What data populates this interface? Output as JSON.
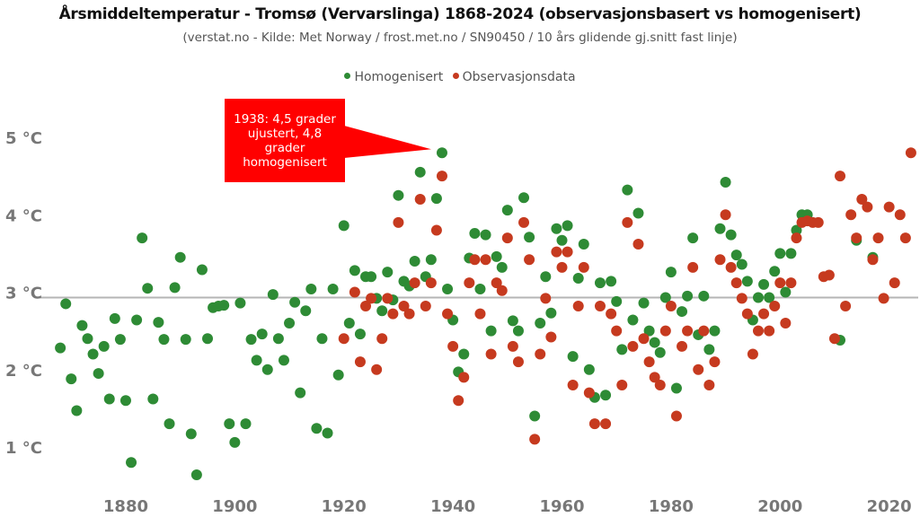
{
  "chart_data": {
    "type": "scatter",
    "title": "Årsmiddeltemperatur - Tromsø (Vervarslinga) 1868-2024 (observasjonsbasert vs homogenisert)",
    "subtitle": "(verstat.no - Kilde: Met Norway / frost.met.no / SN90450 / 10 års glidende gj.snitt fast linje)",
    "xlim": [
      1866,
      2025
    ],
    "ylim": [
      0.5,
      5.5
    ],
    "x_ticks": [
      "1880",
      "1900",
      "1920",
      "1940",
      "1960",
      "1980",
      "2000",
      "2020"
    ],
    "y_ticks": [
      "1 °C",
      "2 °C",
      "3 °C",
      "4 °C",
      "5 °C"
    ],
    "reference_line": 2.93,
    "legend_position": "top-center",
    "annotation": {
      "text": "1938: 4,5 grader ujustert, 4,8 grader homogenisert",
      "x": 1938,
      "y": 4.8
    },
    "series": [
      {
        "name": "Homogenisert",
        "color": "#2e8b35",
        "points": [
          [
            1868,
            2.28
          ],
          [
            1869,
            2.85
          ],
          [
            1870,
            1.88
          ],
          [
            1871,
            1.47
          ],
          [
            1872,
            2.57
          ],
          [
            1873,
            2.4
          ],
          [
            1874,
            2.2
          ],
          [
            1875,
            1.95
          ],
          [
            1876,
            2.3
          ],
          [
            1877,
            1.62
          ],
          [
            1878,
            2.66
          ],
          [
            1879,
            2.39
          ],
          [
            1880,
            1.6
          ],
          [
            1881,
            0.8
          ],
          [
            1882,
            2.64
          ],
          [
            1883,
            3.7
          ],
          [
            1884,
            3.05
          ],
          [
            1885,
            1.62
          ],
          [
            1886,
            2.61
          ],
          [
            1887,
            2.39
          ],
          [
            1888,
            1.3
          ],
          [
            1889,
            3.06
          ],
          [
            1890,
            3.45
          ],
          [
            1891,
            2.39
          ],
          [
            1892,
            1.17
          ],
          [
            1893,
            0.64
          ],
          [
            1894,
            3.29
          ],
          [
            1895,
            2.4
          ],
          [
            1896,
            2.8
          ],
          [
            1897,
            2.82
          ],
          [
            1898,
            2.83
          ],
          [
            1899,
            1.3
          ],
          [
            1900,
            1.06
          ],
          [
            1901,
            2.86
          ],
          [
            1902,
            1.3
          ],
          [
            1903,
            2.39
          ],
          [
            1904,
            2.12
          ],
          [
            1905,
            2.46
          ],
          [
            1906,
            2.0
          ],
          [
            1907,
            2.97
          ],
          [
            1908,
            2.4
          ],
          [
            1909,
            2.12
          ],
          [
            1910,
            2.6
          ],
          [
            1911,
            2.87
          ],
          [
            1912,
            1.7
          ],
          [
            1913,
            2.76
          ],
          [
            1914,
            3.04
          ],
          [
            1915,
            1.24
          ],
          [
            1916,
            2.4
          ],
          [
            1917,
            1.18
          ],
          [
            1918,
            3.04
          ],
          [
            1919,
            1.93
          ],
          [
            1920,
            3.86
          ],
          [
            1921,
            2.6
          ],
          [
            1922,
            3.28
          ],
          [
            1923,
            2.46
          ],
          [
            1924,
            3.2
          ],
          [
            1925,
            3.2
          ],
          [
            1926,
            2.92
          ],
          [
            1927,
            2.76
          ],
          [
            1928,
            3.26
          ],
          [
            1929,
            2.9
          ],
          [
            1930,
            4.25
          ],
          [
            1931,
            3.14
          ],
          [
            1932,
            3.08
          ],
          [
            1933,
            3.4
          ],
          [
            1934,
            4.55
          ],
          [
            1935,
            3.2
          ],
          [
            1936,
            3.42
          ],
          [
            1937,
            4.21
          ],
          [
            1938,
            4.8
          ],
          [
            1939,
            3.04
          ],
          [
            1940,
            2.64
          ],
          [
            1941,
            1.97
          ],
          [
            1942,
            2.2
          ],
          [
            1943,
            3.44
          ],
          [
            1944,
            3.76
          ],
          [
            1945,
            3.04
          ],
          [
            1946,
            3.74
          ],
          [
            1947,
            2.5
          ],
          [
            1948,
            3.46
          ],
          [
            1949,
            3.32
          ],
          [
            1950,
            4.06
          ],
          [
            1951,
            2.63
          ],
          [
            1952,
            2.5
          ],
          [
            1953,
            4.22
          ],
          [
            1954,
            3.71
          ],
          [
            1955,
            1.4
          ],
          [
            1956,
            2.6
          ],
          [
            1957,
            3.2
          ],
          [
            1958,
            2.73
          ],
          [
            1959,
            3.82
          ],
          [
            1960,
            3.67
          ],
          [
            1961,
            3.86
          ],
          [
            1962,
            2.17
          ],
          [
            1963,
            3.18
          ],
          [
            1964,
            3.62
          ],
          [
            1965,
            2.0
          ],
          [
            1966,
            1.64
          ],
          [
            1967,
            3.12
          ],
          [
            1968,
            1.67
          ],
          [
            1969,
            3.14
          ],
          [
            1970,
            2.88
          ],
          [
            1971,
            2.26
          ],
          [
            1972,
            4.32
          ],
          [
            1973,
            2.64
          ],
          [
            1974,
            4.02
          ],
          [
            1975,
            2.86
          ],
          [
            1976,
            2.5
          ],
          [
            1977,
            2.35
          ],
          [
            1978,
            2.22
          ],
          [
            1979,
            2.93
          ],
          [
            1980,
            3.26
          ],
          [
            1981,
            1.76
          ],
          [
            1982,
            2.75
          ],
          [
            1983,
            2.95
          ],
          [
            1984,
            3.7
          ],
          [
            1985,
            2.45
          ],
          [
            1986,
            2.95
          ],
          [
            1987,
            2.26
          ],
          [
            1988,
            2.5
          ],
          [
            1989,
            3.82
          ],
          [
            1990,
            4.42
          ],
          [
            1991,
            3.74
          ],
          [
            1992,
            3.48
          ],
          [
            1993,
            3.36
          ],
          [
            1994,
            3.14
          ],
          [
            1995,
            2.64
          ],
          [
            1996,
            2.93
          ],
          [
            1997,
            3.1
          ],
          [
            1998,
            2.93
          ],
          [
            1999,
            3.27
          ],
          [
            2000,
            3.5
          ],
          [
            2001,
            3.0
          ],
          [
            2002,
            3.5
          ],
          [
            2003,
            3.8
          ],
          [
            2004,
            4.0
          ],
          [
            2005,
            4.0
          ],
          [
            2011,
            2.38
          ],
          [
            2014,
            3.67
          ],
          [
            2017,
            3.45
          ]
        ]
      },
      {
        "name": "Observasjonsdata",
        "color": "#c63a1f",
        "points": [
          [
            1920,
            2.4
          ],
          [
            1922,
            3.0
          ],
          [
            1923,
            2.1
          ],
          [
            1924,
            2.82
          ],
          [
            1925,
            2.92
          ],
          [
            1926,
            2.0
          ],
          [
            1927,
            2.4
          ],
          [
            1928,
            2.92
          ],
          [
            1929,
            2.72
          ],
          [
            1930,
            3.9
          ],
          [
            1931,
            2.82
          ],
          [
            1932,
            2.72
          ],
          [
            1933,
            3.12
          ],
          [
            1934,
            4.2
          ],
          [
            1935,
            2.82
          ],
          [
            1936,
            3.12
          ],
          [
            1937,
            3.8
          ],
          [
            1938,
            4.5
          ],
          [
            1939,
            2.72
          ],
          [
            1940,
            2.3
          ],
          [
            1941,
            1.6
          ],
          [
            1942,
            1.9
          ],
          [
            1943,
            3.12
          ],
          [
            1944,
            3.42
          ],
          [
            1945,
            2.72
          ],
          [
            1946,
            3.42
          ],
          [
            1947,
            2.2
          ],
          [
            1948,
            3.12
          ],
          [
            1949,
            3.02
          ],
          [
            1950,
            3.7
          ],
          [
            1951,
            2.3
          ],
          [
            1952,
            2.1
          ],
          [
            1953,
            3.9
          ],
          [
            1954,
            3.42
          ],
          [
            1955,
            1.1
          ],
          [
            1956,
            2.2
          ],
          [
            1957,
            2.92
          ],
          [
            1958,
            2.42
          ],
          [
            1959,
            3.52
          ],
          [
            1960,
            3.32
          ],
          [
            1961,
            3.52
          ],
          [
            1962,
            1.8
          ],
          [
            1963,
            2.82
          ],
          [
            1964,
            3.32
          ],
          [
            1965,
            1.7
          ],
          [
            1966,
            1.3
          ],
          [
            1967,
            2.82
          ],
          [
            1968,
            1.3
          ],
          [
            1969,
            2.72
          ],
          [
            1970,
            2.5
          ],
          [
            1971,
            1.8
          ],
          [
            1972,
            3.9
          ],
          [
            1973,
            2.3
          ],
          [
            1974,
            3.62
          ],
          [
            1975,
            2.4
          ],
          [
            1976,
            2.1
          ],
          [
            1977,
            1.9
          ],
          [
            1978,
            1.8
          ],
          [
            1979,
            2.5
          ],
          [
            1980,
            2.82
          ],
          [
            1981,
            1.4
          ],
          [
            1982,
            2.3
          ],
          [
            1983,
            2.5
          ],
          [
            1984,
            3.32
          ],
          [
            1985,
            2.0
          ],
          [
            1986,
            2.5
          ],
          [
            1987,
            1.8
          ],
          [
            1988,
            2.1
          ],
          [
            1989,
            3.42
          ],
          [
            1990,
            4.0
          ],
          [
            1991,
            3.32
          ],
          [
            1992,
            3.12
          ],
          [
            1993,
            2.92
          ],
          [
            1994,
            2.72
          ],
          [
            1995,
            2.2
          ],
          [
            1996,
            2.5
          ],
          [
            1997,
            2.72
          ],
          [
            1998,
            2.5
          ],
          [
            1999,
            2.82
          ],
          [
            2000,
            3.12
          ],
          [
            2001,
            2.6
          ],
          [
            2002,
            3.12
          ],
          [
            2003,
            3.7
          ],
          [
            2004,
            3.9
          ],
          [
            2005,
            3.92
          ],
          [
            2006,
            3.9
          ],
          [
            2007,
            3.9
          ],
          [
            2008,
            3.2
          ],
          [
            2009,
            3.22
          ],
          [
            2010,
            2.4
          ],
          [
            2011,
            4.5
          ],
          [
            2012,
            2.82
          ],
          [
            2013,
            4.0
          ],
          [
            2014,
            3.7
          ],
          [
            2015,
            4.2
          ],
          [
            2016,
            4.1
          ],
          [
            2017,
            3.42
          ],
          [
            2018,
            3.7
          ],
          [
            2019,
            2.92
          ],
          [
            2020,
            4.1
          ],
          [
            2021,
            3.12
          ],
          [
            2022,
            4.0
          ],
          [
            2023,
            3.7
          ],
          [
            2024,
            4.8
          ]
        ]
      }
    ]
  }
}
